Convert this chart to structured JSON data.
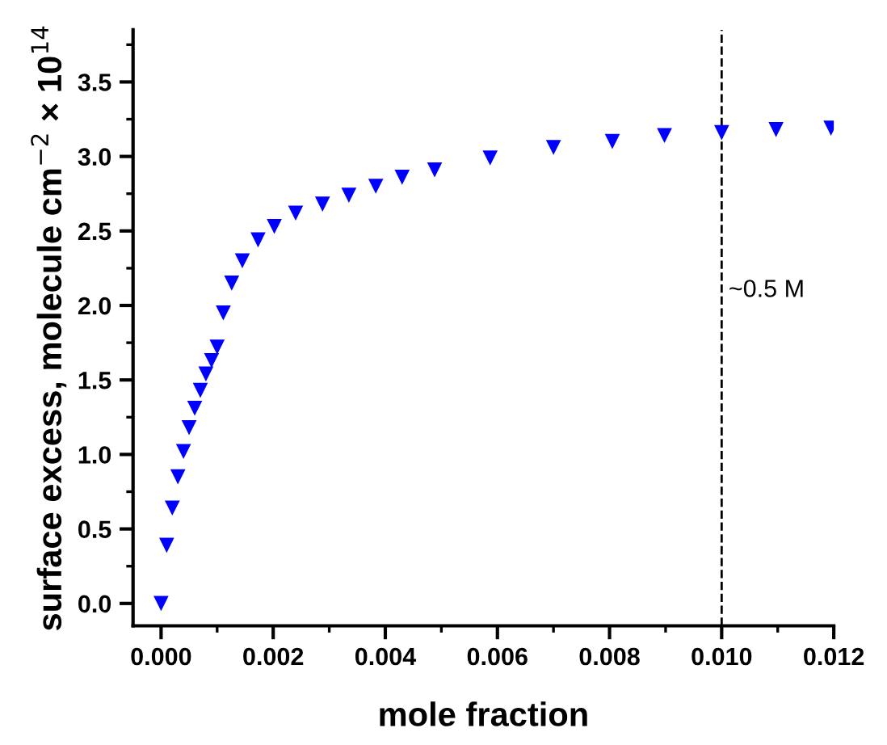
{
  "chart_data": {
    "type": "scatter",
    "xlabel": "mole fraction",
    "ylabel": "surface excess, molecule cm$^{−2}$ × 10$^{14}$",
    "x": [
      0,
      0.0001,
      0.0002,
      0.0003,
      0.0004,
      0.0005,
      0.0006,
      0.0007,
      0.0008,
      0.0009,
      0.001,
      0.00111,
      0.00126,
      0.00145,
      0.00173,
      0.00202,
      0.0024,
      0.00288,
      0.00335,
      0.00383,
      0.0043,
      0.00488,
      0.00587,
      0.007,
      0.00805,
      0.00898,
      0.01,
      0.01097,
      0.01195
    ],
    "series": [
      {
        "color": "#0000ff",
        "values": [
          0,
          0.39,
          0.64,
          0.85,
          1.02,
          1.18,
          1.31,
          1.43,
          1.54,
          1.63,
          1.72,
          1.95,
          2.15,
          2.3,
          2.44,
          2.53,
          2.62,
          2.68,
          2.74,
          2.8,
          2.86,
          2.91,
          2.99,
          3.06,
          3.1,
          3.14,
          3.16,
          3.18,
          3.19
        ]
      }
    ],
    "marker": "triangle",
    "xlim": [
      -0.0005,
      0.012
    ],
    "ylim": [
      -0.15,
      3.85
    ],
    "xticks": [
      {
        "value": 0,
        "label": "0.000"
      },
      {
        "value": 0.002,
        "label": "0.002"
      },
      {
        "value": 0.004,
        "label": "0.004"
      },
      {
        "value": 0.006,
        "label": "0.006"
      },
      {
        "value": 0.008,
        "label": "0.008"
      },
      {
        "value": 0.01,
        "label": "0.010"
      },
      {
        "value": 0.012,
        "label": "0.012"
      }
    ],
    "yticks": [
      {
        "value": 0,
        "label": "0.0"
      },
      {
        "value": 0.5,
        "label": "0.5"
      },
      {
        "value": 1,
        "label": "1.0"
      },
      {
        "value": 1.5,
        "label": "1.5"
      },
      {
        "value": 2,
        "label": "2.0"
      },
      {
        "value": 2.5,
        "label": "2.5"
      },
      {
        "value": 3,
        "label": "3.0"
      },
      {
        "value": 3.5,
        "label": "3.5"
      }
    ],
    "ref_lines": [
      {
        "axis": "x",
        "value": 0.01,
        "label": "~0.5 M",
        "color": "#000000",
        "line_style": "dashed"
      }
    ],
    "grid": false,
    "legend": false
  }
}
